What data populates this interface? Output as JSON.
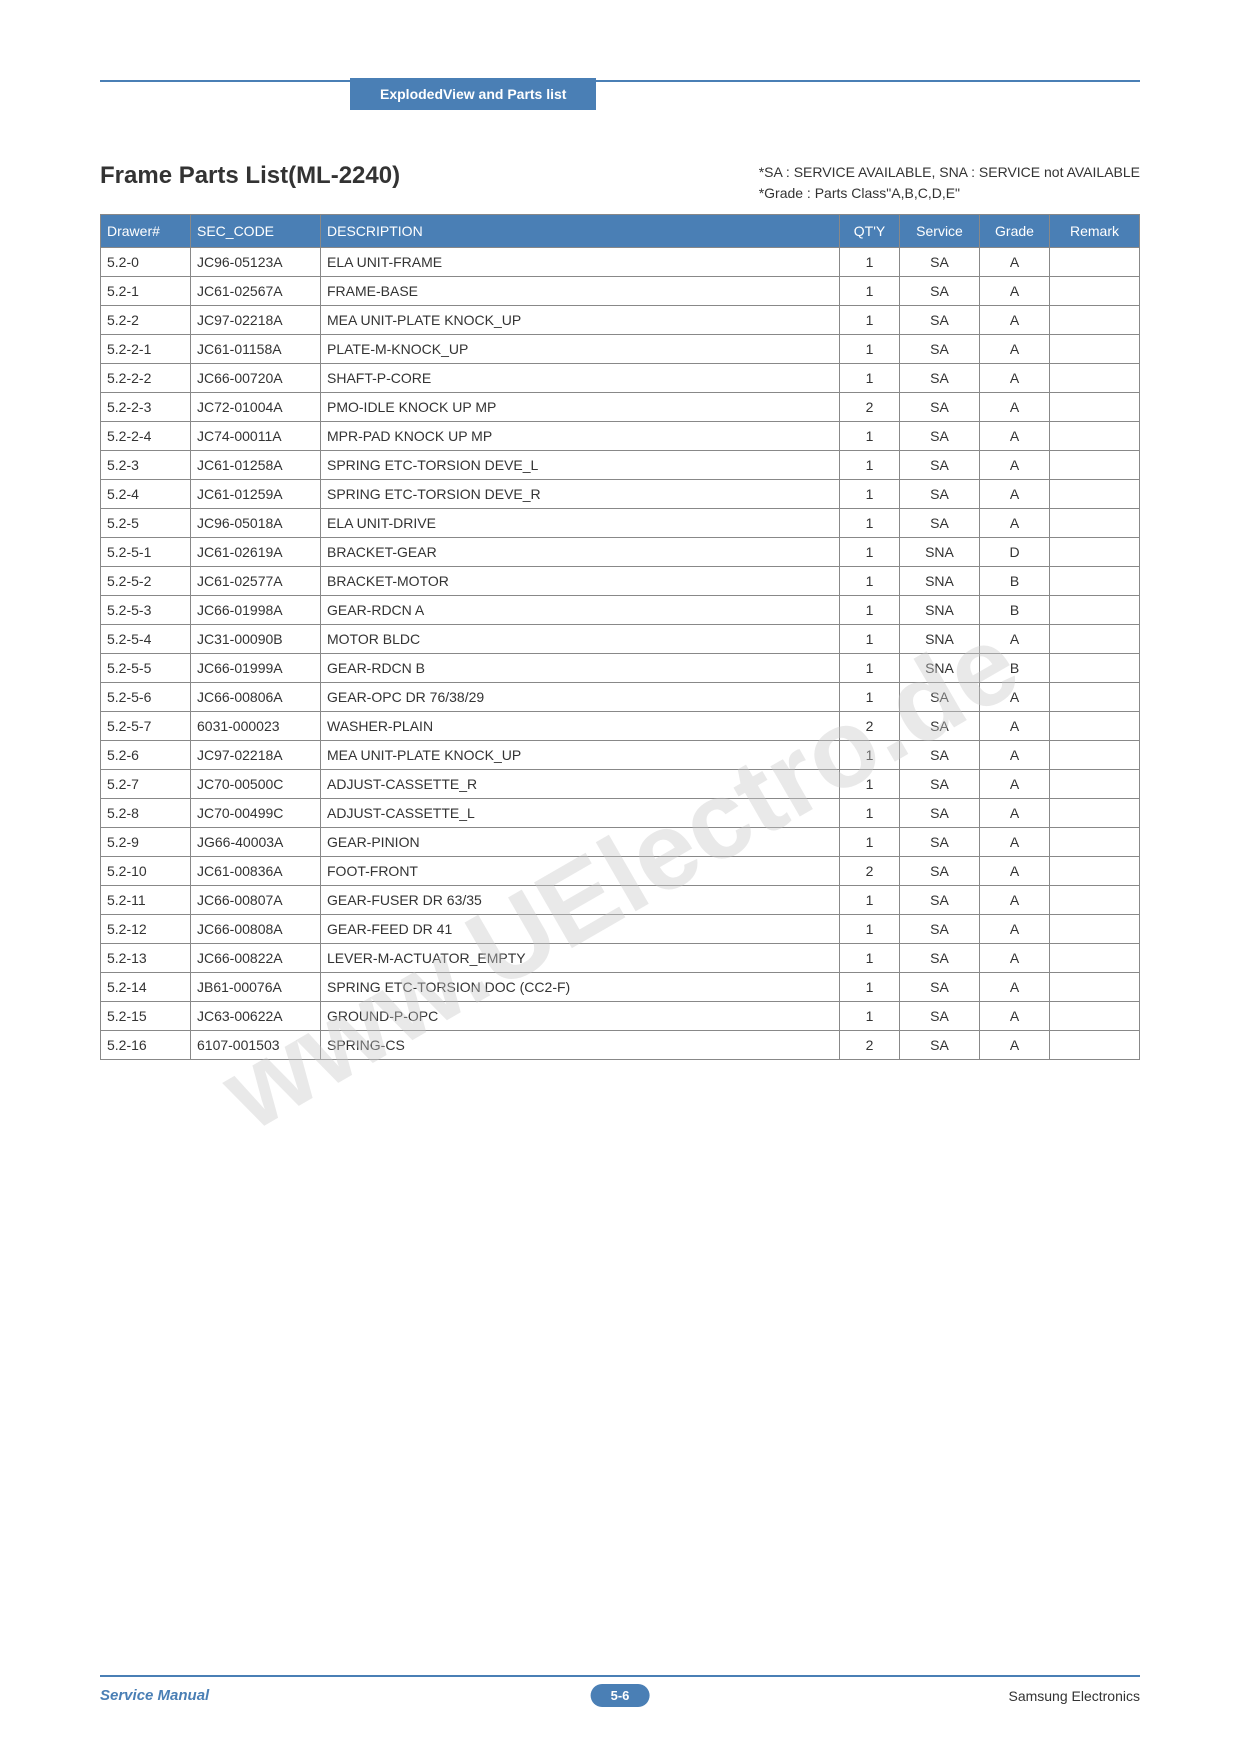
{
  "header": {
    "tab_label": "ExplodedView and Parts list"
  },
  "title": "Frame Parts List(ML-2240)",
  "notes": {
    "line1": "*SA : SERVICE  AVAILABLE, SNA : SERVICE  not  AVAILABLE",
    "line2": "*Grade : Parts Class\"A,B,C,D,E\""
  },
  "watermark": "www.UElectro.de",
  "table": {
    "headers": {
      "drawer": "Drawer#",
      "code": "SEC_CODE",
      "description": "DESCRIPTION",
      "qty": "QT'Y",
      "service": "Service",
      "grade": "Grade",
      "remark": "Remark"
    },
    "rows": [
      {
        "drawer": "5.2-0",
        "code": "JC96-05123A",
        "desc": "ELA UNIT-FRAME",
        "qty": "1",
        "service": "SA",
        "grade": "A",
        "remark": ""
      },
      {
        "drawer": "5.2-1",
        "code": "JC61-02567A",
        "desc": "FRAME-BASE",
        "qty": "1",
        "service": "SA",
        "grade": "A",
        "remark": ""
      },
      {
        "drawer": "5.2-2",
        "code": "JC97-02218A",
        "desc": "MEA UNIT-PLATE KNOCK_UP",
        "qty": "1",
        "service": "SA",
        "grade": "A",
        "remark": ""
      },
      {
        "drawer": "5.2-2-1",
        "code": "JC61-01158A",
        "desc": "PLATE-M-KNOCK_UP",
        "qty": "1",
        "service": "SA",
        "grade": "A",
        "remark": ""
      },
      {
        "drawer": "5.2-2-2",
        "code": "JC66-00720A",
        "desc": "SHAFT-P-CORE",
        "qty": "1",
        "service": "SA",
        "grade": "A",
        "remark": ""
      },
      {
        "drawer": "5.2-2-3",
        "code": "JC72-01004A",
        "desc": "PMO-IDLE KNOCK UP MP",
        "qty": "2",
        "service": "SA",
        "grade": "A",
        "remark": ""
      },
      {
        "drawer": "5.2-2-4",
        "code": "JC74-00011A",
        "desc": "MPR-PAD KNOCK UP MP",
        "qty": "1",
        "service": "SA",
        "grade": "A",
        "remark": ""
      },
      {
        "drawer": "5.2-3",
        "code": "JC61-01258A",
        "desc": "SPRING ETC-TORSION DEVE_L",
        "qty": "1",
        "service": "SA",
        "grade": "A",
        "remark": ""
      },
      {
        "drawer": "5.2-4",
        "code": "JC61-01259A",
        "desc": "SPRING ETC-TORSION DEVE_R",
        "qty": "1",
        "service": "SA",
        "grade": "A",
        "remark": ""
      },
      {
        "drawer": "5.2-5",
        "code": "JC96-05018A",
        "desc": "ELA UNIT-DRIVE",
        "qty": "1",
        "service": "SA",
        "grade": "A",
        "remark": ""
      },
      {
        "drawer": "5.2-5-1",
        "code": "JC61-02619A",
        "desc": "BRACKET-GEAR",
        "qty": "1",
        "service": "SNA",
        "grade": "D",
        "remark": ""
      },
      {
        "drawer": "5.2-5-2",
        "code": "JC61-02577A",
        "desc": "BRACKET-MOTOR",
        "qty": "1",
        "service": "SNA",
        "grade": "B",
        "remark": ""
      },
      {
        "drawer": "5.2-5-3",
        "code": "JC66-01998A",
        "desc": "GEAR-RDCN A",
        "qty": "1",
        "service": "SNA",
        "grade": "B",
        "remark": ""
      },
      {
        "drawer": "5.2-5-4",
        "code": "JC31-00090B",
        "desc": "MOTOR BLDC",
        "qty": "1",
        "service": "SNA",
        "grade": "A",
        "remark": ""
      },
      {
        "drawer": "5.2-5-5",
        "code": "JC66-01999A",
        "desc": "GEAR-RDCN B",
        "qty": "1",
        "service": "SNA",
        "grade": "B",
        "remark": ""
      },
      {
        "drawer": "5.2-5-6",
        "code": "JC66-00806A",
        "desc": "GEAR-OPC DR 76/38/29",
        "qty": "1",
        "service": "SA",
        "grade": "A",
        "remark": ""
      },
      {
        "drawer": "5.2-5-7",
        "code": "6031-000023",
        "desc": "WASHER-PLAIN",
        "qty": "2",
        "service": "SA",
        "grade": "A",
        "remark": ""
      },
      {
        "drawer": "5.2-6",
        "code": "JC97-02218A",
        "desc": "MEA UNIT-PLATE KNOCK_UP",
        "qty": "1",
        "service": "SA",
        "grade": "A",
        "remark": ""
      },
      {
        "drawer": "5.2-7",
        "code": "JC70-00500C",
        "desc": "ADJUST-CASSETTE_R",
        "qty": "1",
        "service": "SA",
        "grade": "A",
        "remark": ""
      },
      {
        "drawer": "5.2-8",
        "code": "JC70-00499C",
        "desc": "ADJUST-CASSETTE_L",
        "qty": "1",
        "service": "SA",
        "grade": "A",
        "remark": ""
      },
      {
        "drawer": "5.2-9",
        "code": "JG66-40003A",
        "desc": "GEAR-PINION",
        "qty": "1",
        "service": "SA",
        "grade": "A",
        "remark": ""
      },
      {
        "drawer": "5.2-10",
        "code": "JC61-00836A",
        "desc": "FOOT-FRONT",
        "qty": "2",
        "service": "SA",
        "grade": "A",
        "remark": ""
      },
      {
        "drawer": "5.2-11",
        "code": "JC66-00807A",
        "desc": "GEAR-FUSER DR 63/35",
        "qty": "1",
        "service": "SA",
        "grade": "A",
        "remark": ""
      },
      {
        "drawer": "5.2-12",
        "code": "JC66-00808A",
        "desc": "GEAR-FEED DR 41",
        "qty": "1",
        "service": "SA",
        "grade": "A",
        "remark": ""
      },
      {
        "drawer": "5.2-13",
        "code": "JC66-00822A",
        "desc": "LEVER-M-ACTUATOR_EMPTY",
        "qty": "1",
        "service": "SA",
        "grade": "A",
        "remark": ""
      },
      {
        "drawer": "5.2-14",
        "code": "JB61-00076A",
        "desc": "SPRING ETC-TORSION DOC (CC2-F)",
        "qty": "1",
        "service": "SA",
        "grade": "A",
        "remark": ""
      },
      {
        "drawer": "5.2-15",
        "code": "JC63-00622A",
        "desc": "GROUND-P-OPC",
        "qty": "1",
        "service": "SA",
        "grade": "A",
        "remark": ""
      },
      {
        "drawer": "5.2-16",
        "code": "6107-001503",
        "desc": "SPRING-CS",
        "qty": "2",
        "service": "SA",
        "grade": "A",
        "remark": ""
      }
    ]
  },
  "footer": {
    "left": "Service Manual",
    "center": "5-6",
    "right": "Samsung Electronics"
  }
}
